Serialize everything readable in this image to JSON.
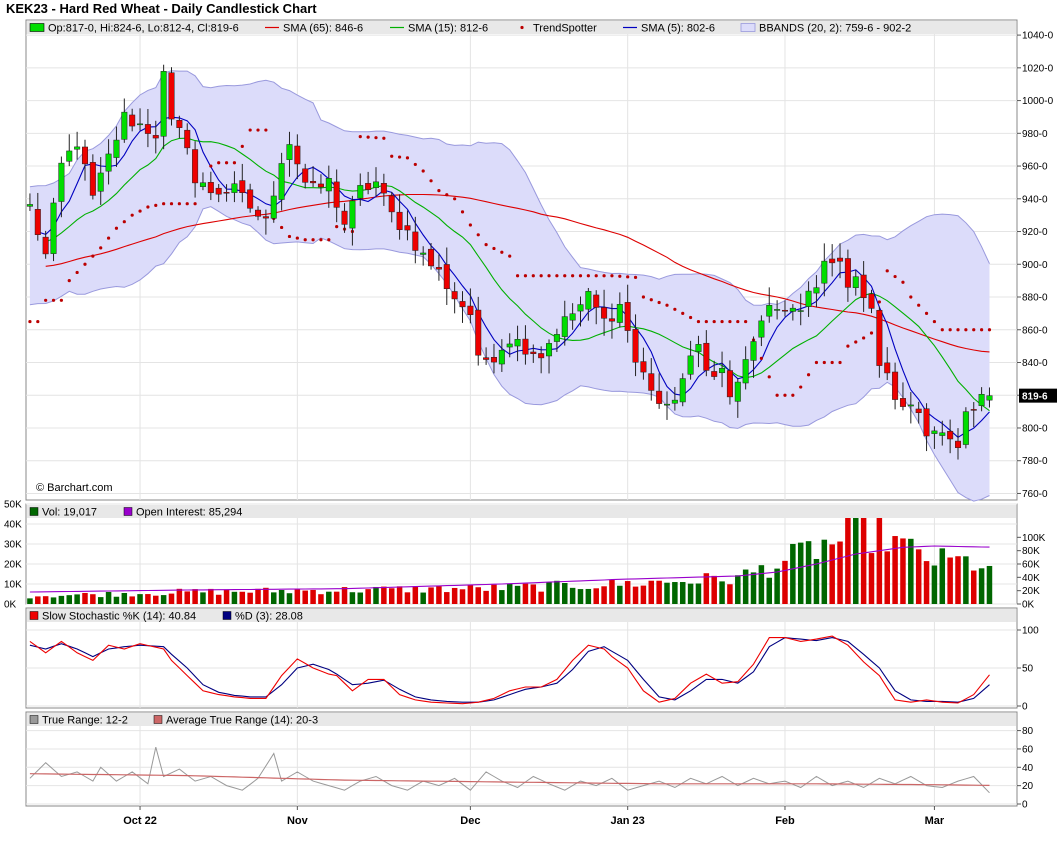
{
  "title": "KEK23 - Hard Red Wheat - Daily Candlestick Chart",
  "watermark": "© Barchart.com",
  "last_price_tag": "819-6",
  "colors": {
    "up": "#00dd00",
    "down": "#ee0000",
    "sma65": "#dd0000",
    "sma15": "#00b000",
    "sma5": "#0000c0",
    "trendspotter": "#bb0000",
    "bbands_fill": "#dcdcfa",
    "bbands_line": "#9999dd",
    "vol_up": "#006600",
    "vol_down": "#dd0000",
    "open_interest": "#9900cc",
    "stoch_k": "#ee0000",
    "stoch_d": "#000080",
    "true_range": "#999999",
    "atr": "#cc6666"
  },
  "legends": {
    "price": [
      {
        "label": "Op:817-0, Hi:824-6, Lo:812-4, Cl:819-6",
        "swatch": "candle"
      },
      {
        "label": "SMA (65): 846-6",
        "swatch": "line",
        "color": "#dd0000"
      },
      {
        "label": "SMA (15): 812-6",
        "swatch": "line",
        "color": "#00b000"
      },
      {
        "label": "TrendSpotter",
        "swatch": "dot",
        "color": "#bb0000"
      },
      {
        "label": "SMA (5): 802-6",
        "swatch": "line",
        "color": "#0000c0"
      },
      {
        "label": "BBANDS (20, 2): 759-6 - 902-2",
        "swatch": "band",
        "color": "#9999dd"
      }
    ],
    "volume": [
      {
        "label": "Vol: 19,017",
        "swatch": "box",
        "color": "#006600"
      },
      {
        "label": "Open Interest: 85,294",
        "swatch": "box",
        "color": "#9900cc"
      }
    ],
    "stochastic": [
      {
        "label": "Slow Stochastic %K (14): 40.84",
        "swatch": "box",
        "color": "#ee0000"
      },
      {
        "label": "%D (3): 28.08",
        "swatch": "box",
        "color": "#000080"
      }
    ],
    "true_range": [
      {
        "label": "True Range: 12-2",
        "swatch": "box",
        "color": "#999999"
      },
      {
        "label": "Average True Range (14): 20-3",
        "swatch": "box",
        "color": "#cc6666"
      }
    ]
  },
  "x_labels": [
    {
      "label": "Oct 22",
      "index": 14
    },
    {
      "label": "Nov",
      "index": 34
    },
    {
      "label": "Dec",
      "index": 56
    },
    {
      "label": "Jan 23",
      "index": 76
    },
    {
      "label": "Feb",
      "index": 96
    },
    {
      "label": "Mar",
      "index": 115
    }
  ],
  "chart_data": {
    "type": "candlestick",
    "num_bars": 126,
    "price_axis": {
      "ticks": [
        "760-0",
        "780-0",
        "800-0",
        "820-0",
        "840-0",
        "860-0",
        "880-0",
        "900-0",
        "920-0",
        "940-0",
        "960-0",
        "980-0",
        "1000-0",
        "1020-0",
        "1040-0"
      ],
      "range": [
        756,
        1048
      ]
    },
    "volume_axis_left": {
      "ticks": [
        "0K",
        "10K",
        "20K",
        "30K",
        "40K",
        "50K"
      ],
      "range": [
        0,
        50000
      ]
    },
    "volume_axis_right": {
      "ticks": [
        "0K",
        "20K",
        "40K",
        "60K",
        "80K",
        "100K"
      ],
      "range": [
        0,
        120000
      ]
    },
    "stochastic_axis": {
      "ticks": [
        "0",
        "50",
        "100"
      ],
      "range": [
        0,
        100
      ]
    },
    "true_range_axis": {
      "ticks": [
        "0",
        "20",
        "40",
        "60",
        "80"
      ],
      "range": [
        0,
        85
      ]
    },
    "close_anchors": [
      [
        0,
        935
      ],
      [
        2,
        905
      ],
      [
        4,
        960
      ],
      [
        6,
        975
      ],
      [
        8,
        940
      ],
      [
        10,
        965
      ],
      [
        12,
        990
      ],
      [
        14,
        985
      ],
      [
        16,
        980
      ],
      [
        17,
        1015
      ],
      [
        18,
        985
      ],
      [
        20,
        975
      ],
      [
        21,
        950
      ],
      [
        23,
        945
      ],
      [
        26,
        945
      ],
      [
        28,
        935
      ],
      [
        30,
        925
      ],
      [
        32,
        965
      ],
      [
        33,
        975
      ],
      [
        35,
        950
      ],
      [
        36,
        945
      ],
      [
        38,
        950
      ],
      [
        40,
        925
      ],
      [
        42,
        945
      ],
      [
        44,
        950
      ],
      [
        45,
        940
      ],
      [
        46,
        930
      ],
      [
        48,
        920
      ],
      [
        50,
        905
      ],
      [
        52,
        895
      ],
      [
        54,
        880
      ],
      [
        56,
        870
      ],
      [
        57,
        840
      ],
      [
        59,
        845
      ],
      [
        61,
        855
      ],
      [
        63,
        850
      ],
      [
        65,
        845
      ],
      [
        67,
        860
      ],
      [
        69,
        870
      ],
      [
        71,
        880
      ],
      [
        73,
        865
      ],
      [
        74,
        870
      ],
      [
        75,
        875
      ],
      [
        76,
        860
      ],
      [
        77,
        840
      ],
      [
        79,
        825
      ],
      [
        80,
        815
      ],
      [
        81,
        810
      ],
      [
        83,
        830
      ],
      [
        85,
        850
      ],
      [
        86,
        840
      ],
      [
        87,
        830
      ],
      [
        88,
        835
      ],
      [
        89,
        820
      ],
      [
        90,
        825
      ],
      [
        92,
        855
      ],
      [
        94,
        870
      ],
      [
        96,
        875
      ],
      [
        98,
        870
      ],
      [
        99,
        880
      ],
      [
        100,
        885
      ],
      [
        101,
        900
      ],
      [
        102,
        905
      ],
      [
        104,
        890
      ],
      [
        105,
        895
      ],
      [
        106,
        880
      ],
      [
        107,
        870
      ],
      [
        108,
        840
      ],
      [
        109,
        830
      ],
      [
        110,
        820
      ],
      [
        111,
        810
      ],
      [
        112,
        815
      ],
      [
        113,
        810
      ],
      [
        114,
        800
      ],
      [
        115,
        800
      ],
      [
        116,
        795
      ],
      [
        117,
        790
      ],
      [
        118,
        785
      ],
      [
        119,
        805
      ],
      [
        120,
        810
      ],
      [
        121,
        817
      ],
      [
        122,
        819.75
      ]
    ],
    "trendspotter_anchors": [
      [
        0,
        865
      ],
      [
        1,
        865
      ],
      [
        2,
        878
      ],
      [
        4,
        878
      ],
      [
        5,
        890
      ],
      [
        7,
        900
      ],
      [
        9,
        910
      ],
      [
        11,
        922
      ],
      [
        13,
        930
      ],
      [
        15,
        935
      ],
      [
        17,
        937
      ],
      [
        19,
        937
      ],
      [
        21,
        937
      ],
      [
        23,
        960
      ],
      [
        24,
        962
      ],
      [
        26,
        962
      ],
      [
        28,
        982
      ],
      [
        30,
        982
      ],
      [
        31,
        928
      ],
      [
        33,
        917
      ],
      [
        35,
        915
      ],
      [
        38,
        915
      ],
      [
        39,
        923
      ],
      [
        41,
        920
      ],
      [
        42,
        978
      ],
      [
        45,
        977
      ],
      [
        46,
        966
      ],
      [
        48,
        965
      ],
      [
        50,
        957
      ],
      [
        52,
        945
      ],
      [
        54,
        940
      ],
      [
        56,
        924
      ],
      [
        58,
        912
      ],
      [
        61,
        905
      ],
      [
        62,
        893
      ],
      [
        66,
        893
      ],
      [
        70,
        893
      ],
      [
        74,
        893
      ],
      [
        77,
        892
      ],
      [
        78,
        880
      ],
      [
        81,
        875
      ],
      [
        83,
        870
      ],
      [
        85,
        865
      ],
      [
        88,
        865
      ],
      [
        91,
        865
      ],
      [
        95,
        820
      ],
      [
        97,
        820
      ],
      [
        98,
        825
      ],
      [
        100,
        840
      ],
      [
        103,
        840
      ],
      [
        104,
        850
      ],
      [
        106,
        855
      ],
      [
        107,
        858
      ],
      [
        109,
        896
      ],
      [
        111,
        889
      ],
      [
        112,
        880
      ],
      [
        114,
        870
      ],
      [
        116,
        860
      ],
      [
        119,
        860
      ],
      [
        122,
        860
      ]
    ],
    "open_interest_anchors": [
      [
        0,
        18000
      ],
      [
        20,
        21000
      ],
      [
        40,
        23000
      ],
      [
        60,
        30000
      ],
      [
        75,
        37000
      ],
      [
        90,
        42000
      ],
      [
        95,
        48000
      ],
      [
        100,
        60000
      ],
      [
        105,
        75000
      ],
      [
        108,
        80000
      ],
      [
        111,
        85000
      ],
      [
        115,
        87000
      ],
      [
        119,
        86000
      ],
      [
        122,
        85294
      ]
    ],
    "stoch_k_anchors": [
      [
        0,
        85
      ],
      [
        2,
        70
      ],
      [
        4,
        85
      ],
      [
        6,
        70
      ],
      [
        8,
        60
      ],
      [
        10,
        80
      ],
      [
        12,
        75
      ],
      [
        14,
        82
      ],
      [
        17,
        75
      ],
      [
        18,
        60
      ],
      [
        20,
        40
      ],
      [
        22,
        20
      ],
      [
        24,
        15
      ],
      [
        26,
        12
      ],
      [
        28,
        10
      ],
      [
        30,
        10
      ],
      [
        32,
        40
      ],
      [
        34,
        62
      ],
      [
        36,
        50
      ],
      [
        38,
        42
      ],
      [
        39,
        40
      ],
      [
        41,
        20
      ],
      [
        43,
        35
      ],
      [
        45,
        35
      ],
      [
        47,
        15
      ],
      [
        49,
        8
      ],
      [
        51,
        5
      ],
      [
        53,
        4
      ],
      [
        55,
        3
      ],
      [
        57,
        5
      ],
      [
        59,
        10
      ],
      [
        61,
        20
      ],
      [
        63,
        25
      ],
      [
        65,
        25
      ],
      [
        67,
        35
      ],
      [
        69,
        60
      ],
      [
        71,
        80
      ],
      [
        73,
        75
      ],
      [
        74,
        65
      ],
      [
        76,
        50
      ],
      [
        78,
        20
      ],
      [
        80,
        5
      ],
      [
        82,
        10
      ],
      [
        84,
        30
      ],
      [
        86,
        42
      ],
      [
        88,
        30
      ],
      [
        90,
        32
      ],
      [
        92,
        55
      ],
      [
        94,
        90
      ],
      [
        96,
        90
      ],
      [
        98,
        85
      ],
      [
        100,
        88
      ],
      [
        102,
        92
      ],
      [
        104,
        80
      ],
      [
        106,
        58
      ],
      [
        108,
        40
      ],
      [
        110,
        8
      ],
      [
        112,
        5
      ],
      [
        114,
        8
      ],
      [
        116,
        5
      ],
      [
        118,
        4
      ],
      [
        120,
        15
      ],
      [
        122,
        41
      ]
    ],
    "stoch_d_anchors": [
      [
        0,
        80
      ],
      [
        2,
        75
      ],
      [
        4,
        82
      ],
      [
        6,
        75
      ],
      [
        8,
        65
      ],
      [
        10,
        75
      ],
      [
        12,
        78
      ],
      [
        14,
        80
      ],
      [
        17,
        78
      ],
      [
        18,
        68
      ],
      [
        20,
        50
      ],
      [
        22,
        28
      ],
      [
        24,
        18
      ],
      [
        26,
        14
      ],
      [
        28,
        12
      ],
      [
        30,
        12
      ],
      [
        32,
        28
      ],
      [
        34,
        50
      ],
      [
        36,
        55
      ],
      [
        38,
        48
      ],
      [
        39,
        42
      ],
      [
        41,
        28
      ],
      [
        43,
        30
      ],
      [
        45,
        34
      ],
      [
        47,
        22
      ],
      [
        49,
        12
      ],
      [
        51,
        8
      ],
      [
        53,
        6
      ],
      [
        55,
        5
      ],
      [
        57,
        5
      ],
      [
        59,
        8
      ],
      [
        61,
        15
      ],
      [
        63,
        22
      ],
      [
        65,
        25
      ],
      [
        67,
        30
      ],
      [
        69,
        48
      ],
      [
        71,
        72
      ],
      [
        73,
        78
      ],
      [
        74,
        72
      ],
      [
        76,
        60
      ],
      [
        78,
        35
      ],
      [
        80,
        12
      ],
      [
        82,
        8
      ],
      [
        84,
        20
      ],
      [
        86,
        35
      ],
      [
        88,
        35
      ],
      [
        90,
        30
      ],
      [
        92,
        45
      ],
      [
        94,
        78
      ],
      [
        96,
        90
      ],
      [
        98,
        88
      ],
      [
        100,
        86
      ],
      [
        102,
        90
      ],
      [
        104,
        85
      ],
      [
        106,
        68
      ],
      [
        108,
        50
      ],
      [
        110,
        20
      ],
      [
        112,
        8
      ],
      [
        114,
        6
      ],
      [
        116,
        6
      ],
      [
        118,
        5
      ],
      [
        120,
        10
      ],
      [
        122,
        28
      ]
    ],
    "true_range_anchors": [
      [
        0,
        28
      ],
      [
        2,
        45
      ],
      [
        4,
        30
      ],
      [
        6,
        35
      ],
      [
        8,
        25
      ],
      [
        9,
        40
      ],
      [
        11,
        25
      ],
      [
        13,
        35
      ],
      [
        15,
        22
      ],
      [
        16,
        62
      ],
      [
        17,
        30
      ],
      [
        19,
        38
      ],
      [
        21,
        25
      ],
      [
        23,
        30
      ],
      [
        25,
        20
      ],
      [
        27,
        15
      ],
      [
        29,
        28
      ],
      [
        31,
        55
      ],
      [
        32,
        25
      ],
      [
        34,
        35
      ],
      [
        36,
        25
      ],
      [
        38,
        20
      ],
      [
        40,
        15
      ],
      [
        42,
        25
      ],
      [
        44,
        30
      ],
      [
        46,
        20
      ],
      [
        48,
        15
      ],
      [
        50,
        25
      ],
      [
        52,
        20
      ],
      [
        54,
        28
      ],
      [
        56,
        15
      ],
      [
        58,
        35
      ],
      [
        60,
        25
      ],
      [
        62,
        18
      ],
      [
        64,
        30
      ],
      [
        66,
        22
      ],
      [
        68,
        15
      ],
      [
        70,
        25
      ],
      [
        72,
        20
      ],
      [
        74,
        28
      ],
      [
        76,
        15
      ],
      [
        78,
        20
      ],
      [
        80,
        25
      ],
      [
        82,
        18
      ],
      [
        84,
        28
      ],
      [
        86,
        22
      ],
      [
        88,
        30
      ],
      [
        90,
        20
      ],
      [
        92,
        28
      ],
      [
        94,
        22
      ],
      [
        96,
        25
      ],
      [
        98,
        18
      ],
      [
        100,
        30
      ],
      [
        102,
        20
      ],
      [
        104,
        25
      ],
      [
        106,
        18
      ],
      [
        108,
        28
      ],
      [
        110,
        22
      ],
      [
        112,
        30
      ],
      [
        114,
        20
      ],
      [
        116,
        18
      ],
      [
        118,
        25
      ],
      [
        120,
        30
      ],
      [
        122,
        12.25
      ]
    ],
    "atr_anchors": [
      [
        0,
        33
      ],
      [
        20,
        31
      ],
      [
        40,
        26
      ],
      [
        60,
        24
      ],
      [
        80,
        22
      ],
      [
        100,
        22
      ],
      [
        115,
        21
      ],
      [
        122,
        20.3
      ]
    ]
  }
}
